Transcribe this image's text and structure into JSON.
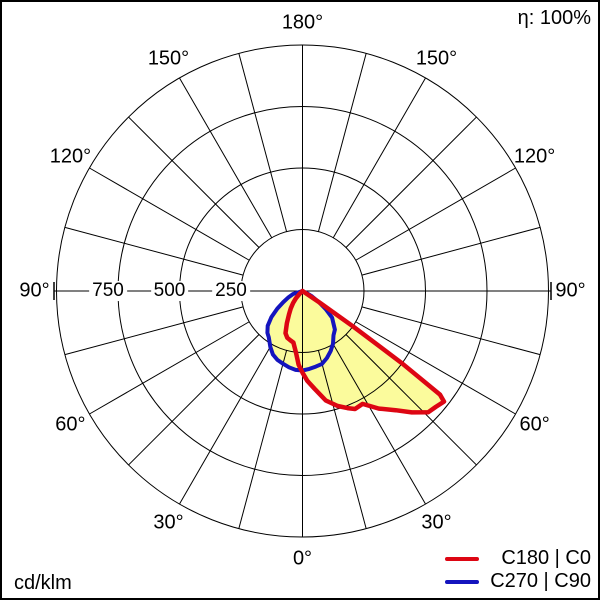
{
  "header": {
    "eta_label": "η: 100%"
  },
  "footer": {
    "unit_label": "cd/klm"
  },
  "legend": {
    "items": [
      {
        "label": "C180 | C0",
        "color": "#dd0613"
      },
      {
        "label": "C270 | C90",
        "color": "#1414be"
      }
    ]
  },
  "chart_data": {
    "type": "polar",
    "subtype": "photometric-intensity-distribution",
    "unit": "cd/klm",
    "efficiency": "100%",
    "orientation": "0° at bottom (nadir), 90° at sides, 180° at top",
    "radial_max": 1000,
    "radial_ticks": [
      250,
      500,
      750,
      1000
    ],
    "radial_axis_labels": [
      750,
      500,
      250
    ],
    "angle_tick_step_deg": 15,
    "angle_label_step_deg": 30,
    "angle_labels": [
      {
        "text": "180°",
        "dir": 0
      },
      {
        "text": "150°",
        "dir": 30
      },
      {
        "text": "120°",
        "dir": 60
      },
      {
        "text": "90°",
        "dir": 90
      },
      {
        "text": "60°",
        "dir": 120
      },
      {
        "text": "30°",
        "dir": 150
      },
      {
        "text": "0°",
        "dir": 180
      },
      {
        "text": "30°",
        "dir": 210
      },
      {
        "text": "60°",
        "dir": 240
      },
      {
        "text": "90°",
        "dir": 270
      },
      {
        "text": "120°",
        "dir": 300
      },
      {
        "text": "150°",
        "dir": 330
      }
    ],
    "fill_color": "#fbfb9c",
    "grid_color": "#000000",
    "series": [
      {
        "name": "C270 | C90",
        "color": "#1414be",
        "stroke_width": 4,
        "points_gamma_value": [
          [
            -78,
            0
          ],
          [
            -72,
            40
          ],
          [
            -66,
            62
          ],
          [
            -60,
            90
          ],
          [
            -55,
            125
          ],
          [
            -50,
            165
          ],
          [
            -45,
            200
          ],
          [
            -40,
            222
          ],
          [
            -36,
            233
          ],
          [
            -30,
            262
          ],
          [
            -25,
            285
          ],
          [
            -20,
            298
          ],
          [
            -15,
            306
          ],
          [
            -10,
            315
          ],
          [
            -5,
            322
          ],
          [
            0,
            323
          ],
          [
            5,
            318
          ],
          [
            10,
            312
          ],
          [
            15,
            307
          ],
          [
            20,
            290
          ],
          [
            25,
            270
          ],
          [
            30,
            248
          ],
          [
            35,
            220
          ],
          [
            40,
            205
          ],
          [
            44,
            180
          ],
          [
            48,
            162
          ],
          [
            52,
            120
          ],
          [
            56,
            80
          ],
          [
            60,
            45
          ],
          [
            64,
            20
          ],
          [
            68,
            0
          ]
        ]
      },
      {
        "name": "C180 | C0",
        "color": "#dd0613",
        "stroke_width": 4.5,
        "points_gamma_value": [
          [
            -50,
            0
          ],
          [
            -46,
            15
          ],
          [
            -42,
            40
          ],
          [
            -38,
            62
          ],
          [
            -34,
            85
          ],
          [
            -30,
            110
          ],
          [
            -26,
            145
          ],
          [
            -22,
            185
          ],
          [
            -18,
            200
          ],
          [
            -14,
            206
          ],
          [
            -10,
            213
          ],
          [
            -6,
            252
          ],
          [
            -3,
            300
          ],
          [
            0,
            332
          ],
          [
            3,
            365
          ],
          [
            7,
            400
          ],
          [
            12,
            455
          ],
          [
            17,
            489
          ],
          [
            21,
            510
          ],
          [
            24,
            525
          ],
          [
            28,
            520
          ],
          [
            33,
            570
          ],
          [
            38,
            615
          ],
          [
            42,
            664
          ],
          [
            46,
            710
          ],
          [
            49,
            718
          ],
          [
            52,
            730
          ],
          [
            53,
            700
          ],
          [
            54,
            500
          ],
          [
            55,
            250
          ],
          [
            56,
            80
          ],
          [
            57,
            0
          ]
        ]
      }
    ]
  }
}
